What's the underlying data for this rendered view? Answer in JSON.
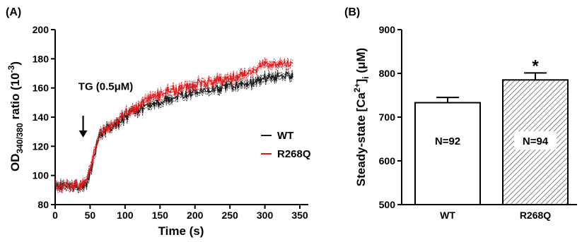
{
  "chart_data": [
    {
      "panel": "(A)",
      "type": "line",
      "xlabel": "Time (s)",
      "ylabel": {
        "pre": "OD",
        "sub": "340/380",
        "mid": " ratio (10",
        "sup": "-3",
        "post": ")"
      },
      "xlim": [
        0,
        350
      ],
      "ylim": [
        80,
        200
      ],
      "xticks": [
        0,
        50,
        100,
        150,
        200,
        250,
        300,
        350
      ],
      "yticks": [
        80,
        100,
        120,
        140,
        160,
        180,
        200
      ],
      "annotation": {
        "text": "TG (0.5μM)",
        "x": 40,
        "arrow_from": 141,
        "arrow_to": 126
      },
      "legend_position": "right",
      "colors": {
        "WT": "#1a1a1a",
        "R268Q": "#e31a1c"
      },
      "series": [
        {
          "name": "WT",
          "sem": 2.0,
          "points": [
            [
              0,
              93
            ],
            [
              10,
              93
            ],
            [
              20,
              93
            ],
            [
              30,
              92.5
            ],
            [
              38,
              92.5
            ],
            [
              42,
              93
            ],
            [
              46,
              95
            ],
            [
              50,
              102
            ],
            [
              55,
              112
            ],
            [
              60,
              122
            ],
            [
              65,
              128
            ],
            [
              70,
              131
            ],
            [
              80,
              133
            ],
            [
              90,
              136
            ],
            [
              100,
              140
            ],
            [
              110,
              143
            ],
            [
              120,
              145
            ],
            [
              130,
              148
            ],
            [
              140,
              150
            ],
            [
              150,
              150
            ],
            [
              160,
              153
            ],
            [
              170,
              153
            ],
            [
              180,
              155
            ],
            [
              190,
              156
            ],
            [
              200,
              157
            ],
            [
              210,
              158
            ],
            [
              220,
              158
            ],
            [
              230,
              160
            ],
            [
              240,
              160
            ],
            [
              250,
              162
            ],
            [
              260,
              162
            ],
            [
              270,
              163
            ],
            [
              280,
              164
            ],
            [
              290,
              165
            ],
            [
              300,
              166
            ],
            [
              310,
              167
            ],
            [
              320,
              168
            ],
            [
              330,
              168
            ],
            [
              340,
              168
            ]
          ]
        },
        {
          "name": "R268Q",
          "sem": 2.0,
          "points": [
            [
              0,
              93
            ],
            [
              10,
              93
            ],
            [
              20,
              93
            ],
            [
              30,
              93
            ],
            [
              38,
              93
            ],
            [
              42,
              95
            ],
            [
              46,
              98
            ],
            [
              50,
              104
            ],
            [
              55,
              114
            ],
            [
              60,
              124
            ],
            [
              65,
              129
            ],
            [
              70,
              131
            ],
            [
              80,
              134
            ],
            [
              90,
              138
            ],
            [
              100,
              142
            ],
            [
              110,
              145
            ],
            [
              120,
              148
            ],
            [
              130,
              152
            ],
            [
              140,
              154
            ],
            [
              150,
              156
            ],
            [
              160,
              158
            ],
            [
              170,
              158
            ],
            [
              180,
              160
            ],
            [
              190,
              161
            ],
            [
              200,
              162
            ],
            [
              210,
              164
            ],
            [
              220,
              164
            ],
            [
              230,
              165
            ],
            [
              240,
              166
            ],
            [
              250,
              167
            ],
            [
              260,
              168
            ],
            [
              270,
              169
            ],
            [
              280,
              171
            ],
            [
              290,
              174
            ],
            [
              300,
              176
            ],
            [
              310,
              176
            ],
            [
              320,
              177
            ],
            [
              330,
              177
            ],
            [
              340,
              177
            ]
          ]
        }
      ]
    },
    {
      "panel": "(B)",
      "type": "bar",
      "ylabel": {
        "pre": "Steady-state [Ca",
        "sup": "2+",
        "mid": "]",
        "sub": "i",
        "post": " (μM)"
      },
      "ylim": [
        500,
        900
      ],
      "yticks": [
        500,
        600,
        700,
        800,
        900
      ],
      "categories": [
        "WT",
        "R268Q"
      ],
      "values": [
        733,
        785
      ],
      "errors": [
        12,
        16
      ],
      "bar_labels": [
        "N=92",
        "N=94"
      ],
      "fills": [
        "white",
        "hatched"
      ],
      "significance": [
        "",
        "*"
      ]
    }
  ]
}
